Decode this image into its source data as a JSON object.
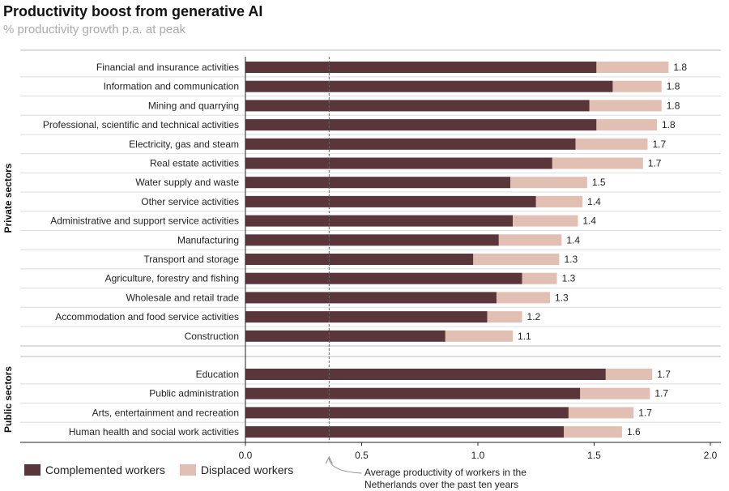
{
  "chart_data": {
    "type": "bar",
    "stacked": true,
    "orientation": "horizontal",
    "title": "Productivity boost from generative AI",
    "subtitle": "% productivity growth p.a. at peak",
    "xlim": [
      0,
      2.0
    ],
    "xticks": [
      "0.0",
      "0.5",
      "1.0",
      "1.5",
      "2.0"
    ],
    "groups": [
      {
        "name": "Private sectors",
        "categories": [
          "Financial and insurance activities",
          "Information and communication",
          "Mining and quarrying",
          "Professional, scientific and technical activities",
          "Electricity, gas and steam",
          "Real estate activities",
          "Water supply and waste",
          "Other service activities",
          "Administrative and support service activities",
          "Manufacturing",
          "Transport and storage",
          "Agriculture, forestry and fishing",
          "Wholesale and retail trade",
          "Accommodation and food service activities",
          "Construction"
        ],
        "complemented": [
          1.51,
          1.58,
          1.48,
          1.51,
          1.42,
          1.32,
          1.14,
          1.25,
          1.15,
          1.09,
          0.98,
          1.19,
          1.08,
          1.04,
          0.86
        ],
        "displaced": [
          0.31,
          0.21,
          0.31,
          0.26,
          0.31,
          0.39,
          0.33,
          0.2,
          0.28,
          0.27,
          0.37,
          0.15,
          0.23,
          0.15,
          0.29
        ],
        "labels": [
          "1.8",
          "1.8",
          "1.8",
          "1.8",
          "1.7",
          "1.7",
          "1.5",
          "1.4",
          "1.4",
          "1.4",
          "1.3",
          "1.3",
          "1.3",
          "1.2",
          "1.1"
        ]
      },
      {
        "name": "Public sectors",
        "categories": [
          "Education",
          "Public administration",
          "Arts, entertainment and recreation",
          "Human health and social work activities"
        ],
        "complemented": [
          1.55,
          1.44,
          1.39,
          1.37
        ],
        "displaced": [
          0.2,
          0.3,
          0.28,
          0.25
        ],
        "labels": [
          "1.7",
          "1.7",
          "1.7",
          "1.6"
        ]
      }
    ],
    "series": [
      {
        "name": "Complemented workers",
        "color": "#5a363a"
      },
      {
        "name": "Displaced workers",
        "color": "#e2bfb3"
      }
    ],
    "reference_line": {
      "value": 0.36,
      "label": "Average productivity of workers in the Netherlands over the past ten years"
    },
    "legend": "bottom-left"
  },
  "note": {
    "line1": "Average productivity of workers in the",
    "line2": "Netherlands  over the past ten years"
  }
}
